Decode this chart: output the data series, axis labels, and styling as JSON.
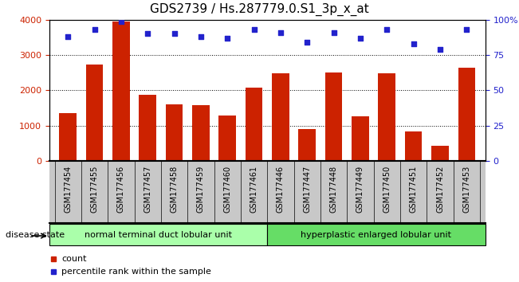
{
  "title": "GDS2739 / Hs.287779.0.S1_3p_x_at",
  "categories": [
    "GSM177454",
    "GSM177455",
    "GSM177456",
    "GSM177457",
    "GSM177458",
    "GSM177459",
    "GSM177460",
    "GSM177461",
    "GSM177446",
    "GSM177447",
    "GSM177448",
    "GSM177449",
    "GSM177450",
    "GSM177451",
    "GSM177452",
    "GSM177453"
  ],
  "counts": [
    1350,
    2730,
    3950,
    1860,
    1600,
    1570,
    1280,
    2080,
    2480,
    900,
    2500,
    1260,
    2490,
    820,
    430,
    2640
  ],
  "percentiles": [
    88,
    93,
    99,
    90,
    90,
    88,
    87,
    93,
    91,
    84,
    91,
    87,
    93,
    83,
    79,
    93
  ],
  "bar_color": "#cc2200",
  "dot_color": "#2222cc",
  "ylim_left": [
    0,
    4000
  ],
  "ylim_right": [
    0,
    100
  ],
  "yticks_left": [
    0,
    1000,
    2000,
    3000,
    4000
  ],
  "yticks_right": [
    0,
    25,
    50,
    75,
    100
  ],
  "group1_label": "normal terminal duct lobular unit",
  "group2_label": "hyperplastic enlarged lobular unit",
  "group1_color": "#aaffaa",
  "group2_color": "#66dd66",
  "disease_state_label": "disease state",
  "legend_count_label": "count",
  "legend_percentile_label": "percentile rank within the sample",
  "tick_area_color": "#c8c8c8",
  "title_fontsize": 11,
  "tick_fontsize": 7,
  "label_fontsize": 8
}
